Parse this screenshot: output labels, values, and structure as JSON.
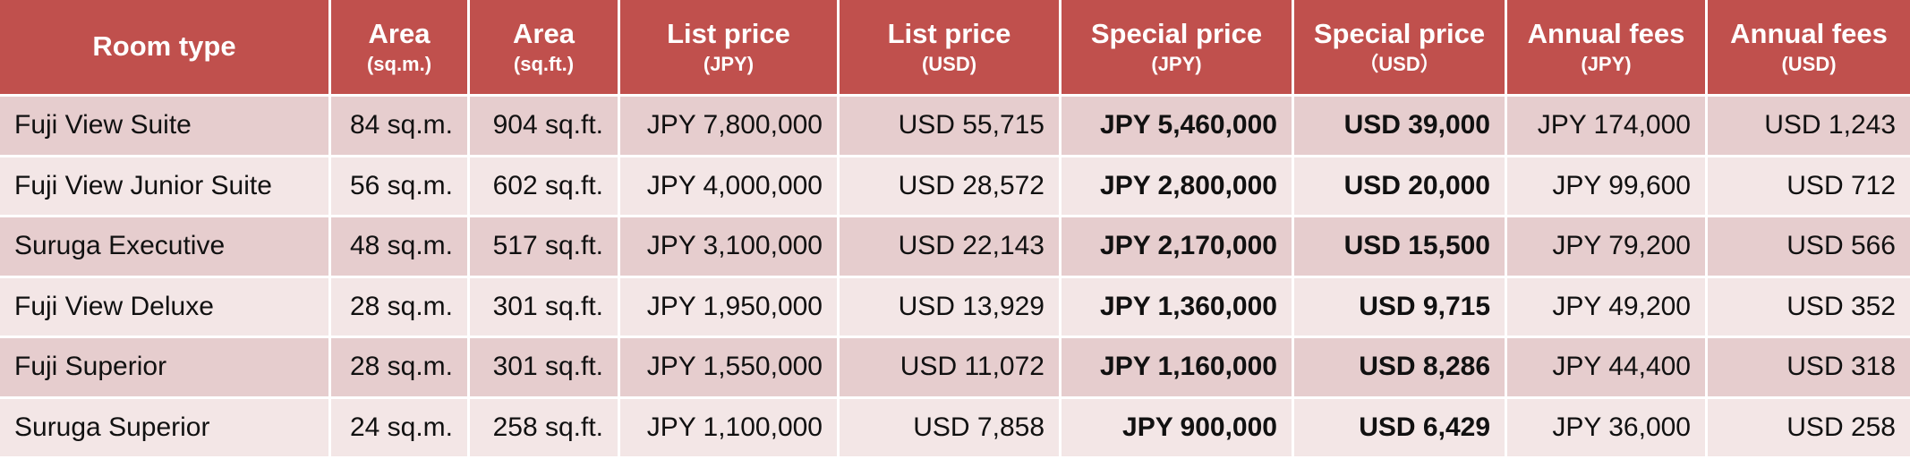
{
  "table": {
    "headers": [
      {
        "main": "Room type",
        "sub": ""
      },
      {
        "main": "Area",
        "sub": "(sq.m.)"
      },
      {
        "main": "Area",
        "sub": "(sq.ft.)"
      },
      {
        "main": "List price",
        "sub": "(JPY)"
      },
      {
        "main": "List price",
        "sub": "(USD)"
      },
      {
        "main": "Special price",
        "sub": "(JPY)"
      },
      {
        "main": "Special price",
        "sub": "（USD）"
      },
      {
        "main": "Annual fees",
        "sub": "(JPY)"
      },
      {
        "main": "Annual fees",
        "sub": "(USD)"
      }
    ],
    "rows": [
      [
        "Fuji View Suite",
        "84 sq.m.",
        "904 sq.ft.",
        "JPY 7,800,000",
        "USD 55,715",
        "JPY 5,460,000",
        "USD 39,000",
        "JPY 174,000",
        "USD 1,243"
      ],
      [
        "Fuji View Junior Suite",
        "56 sq.m.",
        "602 sq.ft.",
        "JPY 4,000,000",
        "USD 28,572",
        "JPY 2,800,000",
        "USD 20,000",
        "JPY 99,600",
        "USD 712"
      ],
      [
        "Suruga Executive",
        "48 sq.m.",
        "517 sq.ft.",
        "JPY 3,100,000",
        "USD 22,143",
        "JPY 2,170,000",
        "USD 15,500",
        "JPY 79,200",
        "USD 566"
      ],
      [
        "Fuji View Deluxe",
        "28 sq.m.",
        "301 sq.ft.",
        "JPY 1,950,000",
        "USD 13,929",
        "JPY 1,360,000",
        "USD 9,715",
        "JPY 49,200",
        "USD 352"
      ],
      [
        "Fuji Superior",
        "28 sq.m.",
        "301 sq.ft.",
        "JPY 1,550,000",
        "USD 11,072",
        "JPY 1,160,000",
        "USD 8,286",
        "JPY 44,400",
        "USD 318"
      ],
      [
        "Suruga Superior",
        "24 sq.m.",
        "258 sq.ft.",
        "JPY 1,100,000",
        "USD 7,858",
        "JPY 900,000",
        "USD 6,429",
        "JPY 36,000",
        "USD 258"
      ]
    ]
  },
  "colors": {
    "header_bg": "#c0504d",
    "header_text": "#ffffff",
    "row_odd_bg": "#e6cdce",
    "row_even_bg": "#f3e6e6"
  }
}
